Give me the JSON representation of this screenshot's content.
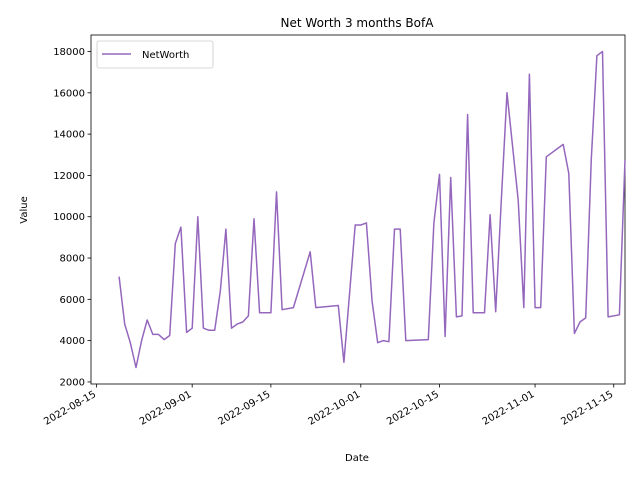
{
  "chart_data": {
    "type": "line",
    "title": "Net Worth 3 months BofA",
    "xlabel": "Date",
    "ylabel": "Value",
    "xlim": [
      "2022-08-14",
      "2022-11-17"
    ],
    "ylim": [
      1900,
      18800
    ],
    "x_ticks": [
      "2022-08-15",
      "2022-09-01",
      "2022-09-15",
      "2022-10-01",
      "2022-10-15",
      "2022-11-01",
      "2022-11-15"
    ],
    "y_ticks": [
      2000,
      4000,
      6000,
      8000,
      10000,
      12000,
      14000,
      16000,
      18000
    ],
    "grid": false,
    "legend_position": "upper-left",
    "series": [
      {
        "name": "NetWorth",
        "color": "#9467bd",
        "points": [
          [
            "2022-08-19",
            7100
          ],
          [
            "2022-08-20",
            4800
          ],
          [
            "2022-08-21",
            3900
          ],
          [
            "2022-08-22",
            2700
          ],
          [
            "2022-08-23",
            4000
          ],
          [
            "2022-08-24",
            5000
          ],
          [
            "2022-08-25",
            4300
          ],
          [
            "2022-08-26",
            4300
          ],
          [
            "2022-08-27",
            4050
          ],
          [
            "2022-08-28",
            4250
          ],
          [
            "2022-08-29",
            8700
          ],
          [
            "2022-08-30",
            9500
          ],
          [
            "2022-08-31",
            4400
          ],
          [
            "2022-09-01",
            4600
          ],
          [
            "2022-09-02",
            10000
          ],
          [
            "2022-09-03",
            4600
          ],
          [
            "2022-09-04",
            4500
          ],
          [
            "2022-09-05",
            4500
          ],
          [
            "2022-09-06",
            6400
          ],
          [
            "2022-09-07",
            9400
          ],
          [
            "2022-09-08",
            4600
          ],
          [
            "2022-09-09",
            4800
          ],
          [
            "2022-09-10",
            4900
          ],
          [
            "2022-09-11",
            5200
          ],
          [
            "2022-09-12",
            9900
          ],
          [
            "2022-09-13",
            5350
          ],
          [
            "2022-09-15",
            5350
          ],
          [
            "2022-09-16",
            11200
          ],
          [
            "2022-09-17",
            5500
          ],
          [
            "2022-09-19",
            5600
          ],
          [
            "2022-09-22",
            8300
          ],
          [
            "2022-09-23",
            5600
          ],
          [
            "2022-09-27",
            5700
          ],
          [
            "2022-09-28",
            2950
          ],
          [
            "2022-09-30",
            9600
          ],
          [
            "2022-10-01",
            9600
          ],
          [
            "2022-10-02",
            9700
          ],
          [
            "2022-10-03",
            5900
          ],
          [
            "2022-10-04",
            3900
          ],
          [
            "2022-10-05",
            4000
          ],
          [
            "2022-10-06",
            3950
          ],
          [
            "2022-10-07",
            9400
          ],
          [
            "2022-10-08",
            9400
          ],
          [
            "2022-10-09",
            4000
          ],
          [
            "2022-10-13",
            4050
          ],
          [
            "2022-10-14",
            9700
          ],
          [
            "2022-10-15",
            12050
          ],
          [
            "2022-10-16",
            4200
          ],
          [
            "2022-10-17",
            11900
          ],
          [
            "2022-10-18",
            5150
          ],
          [
            "2022-10-19",
            5200
          ],
          [
            "2022-10-20",
            14950
          ],
          [
            "2022-10-21",
            5350
          ],
          [
            "2022-10-23",
            5350
          ],
          [
            "2022-10-24",
            10100
          ],
          [
            "2022-10-25",
            5400
          ],
          [
            "2022-10-26",
            10800
          ],
          [
            "2022-10-27",
            16000
          ],
          [
            "2022-10-29",
            10800
          ],
          [
            "2022-10-30",
            5600
          ],
          [
            "2022-10-31",
            16900
          ],
          [
            "2022-11-01",
            5600
          ],
          [
            "2022-11-02",
            5600
          ],
          [
            "2022-11-03",
            12900
          ],
          [
            "2022-11-06",
            13500
          ],
          [
            "2022-11-07",
            12100
          ],
          [
            "2022-11-08",
            4350
          ],
          [
            "2022-11-09",
            4900
          ],
          [
            "2022-11-10",
            5100
          ],
          [
            "2022-11-11",
            12800
          ],
          [
            "2022-11-12",
            17800
          ],
          [
            "2022-11-13",
            18000
          ],
          [
            "2022-11-14",
            5150
          ],
          [
            "2022-11-16",
            5250
          ],
          [
            "2022-11-17",
            12750
          ]
        ]
      }
    ]
  }
}
